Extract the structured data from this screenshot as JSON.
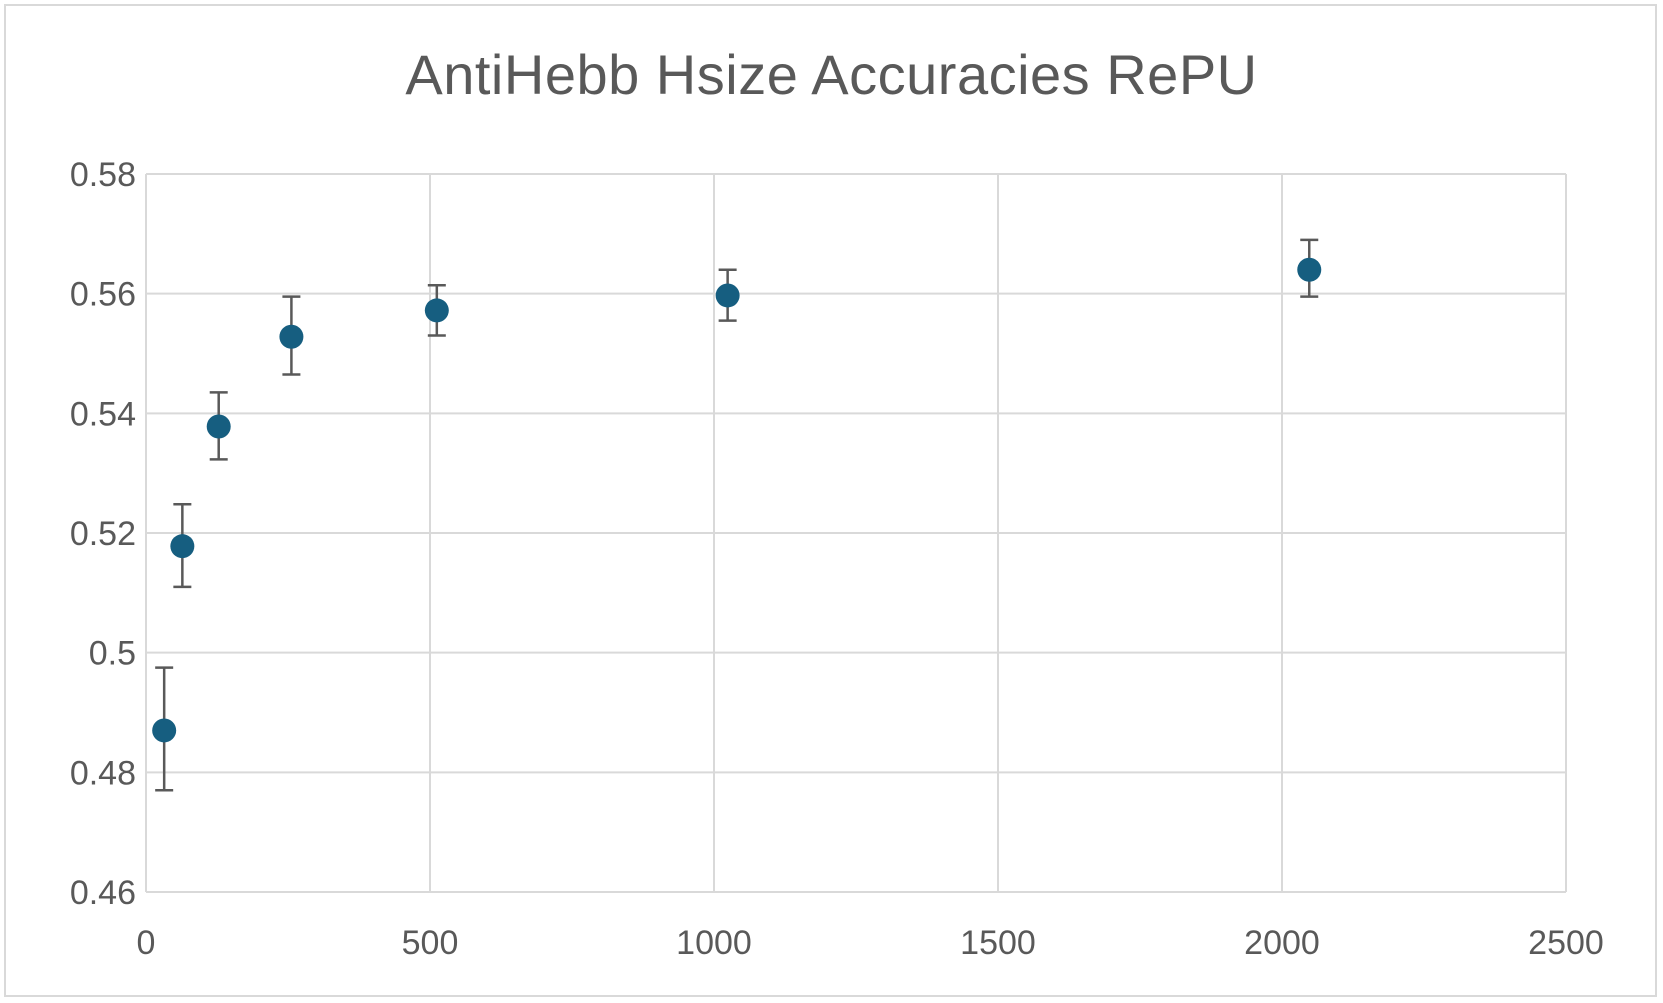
{
  "chart_data": {
    "type": "scatter",
    "title": "AntiHebb Hsize Accuracies RePU",
    "xlabel": "",
    "ylabel": "",
    "xlim": [
      0,
      2500
    ],
    "ylim": [
      0.46,
      0.58
    ],
    "x_ticks": [
      0,
      500,
      1000,
      1500,
      2000,
      2500
    ],
    "y_ticks": [
      0.46,
      0.48,
      0.5,
      0.52,
      0.54,
      0.56,
      0.58
    ],
    "x_tick_labels": [
      "0",
      "500",
      "1000",
      "1500",
      "2000",
      "2500"
    ],
    "y_tick_labels": [
      "0.46",
      "0.48",
      "0.5",
      "0.52",
      "0.54",
      "0.56",
      "0.58"
    ],
    "grid": true,
    "legend": "none",
    "series": [
      {
        "color": "#165e80",
        "points": [
          {
            "x": 32,
            "y": 0.487,
            "err_low": 0.01,
            "err_high": 0.0105
          },
          {
            "x": 64,
            "y": 0.5178,
            "err_low": 0.0068,
            "err_high": 0.007
          },
          {
            "x": 128,
            "y": 0.5378,
            "err_low": 0.0055,
            "err_high": 0.0057
          },
          {
            "x": 256,
            "y": 0.5528,
            "err_low": 0.0063,
            "err_high": 0.0067
          },
          {
            "x": 512,
            "y": 0.5572,
            "err_low": 0.0042,
            "err_high": 0.0042
          },
          {
            "x": 1024,
            "y": 0.5597,
            "err_low": 0.0042,
            "err_high": 0.0043
          },
          {
            "x": 2048,
            "y": 0.564,
            "err_low": 0.0045,
            "err_high": 0.005
          }
        ]
      }
    ]
  }
}
